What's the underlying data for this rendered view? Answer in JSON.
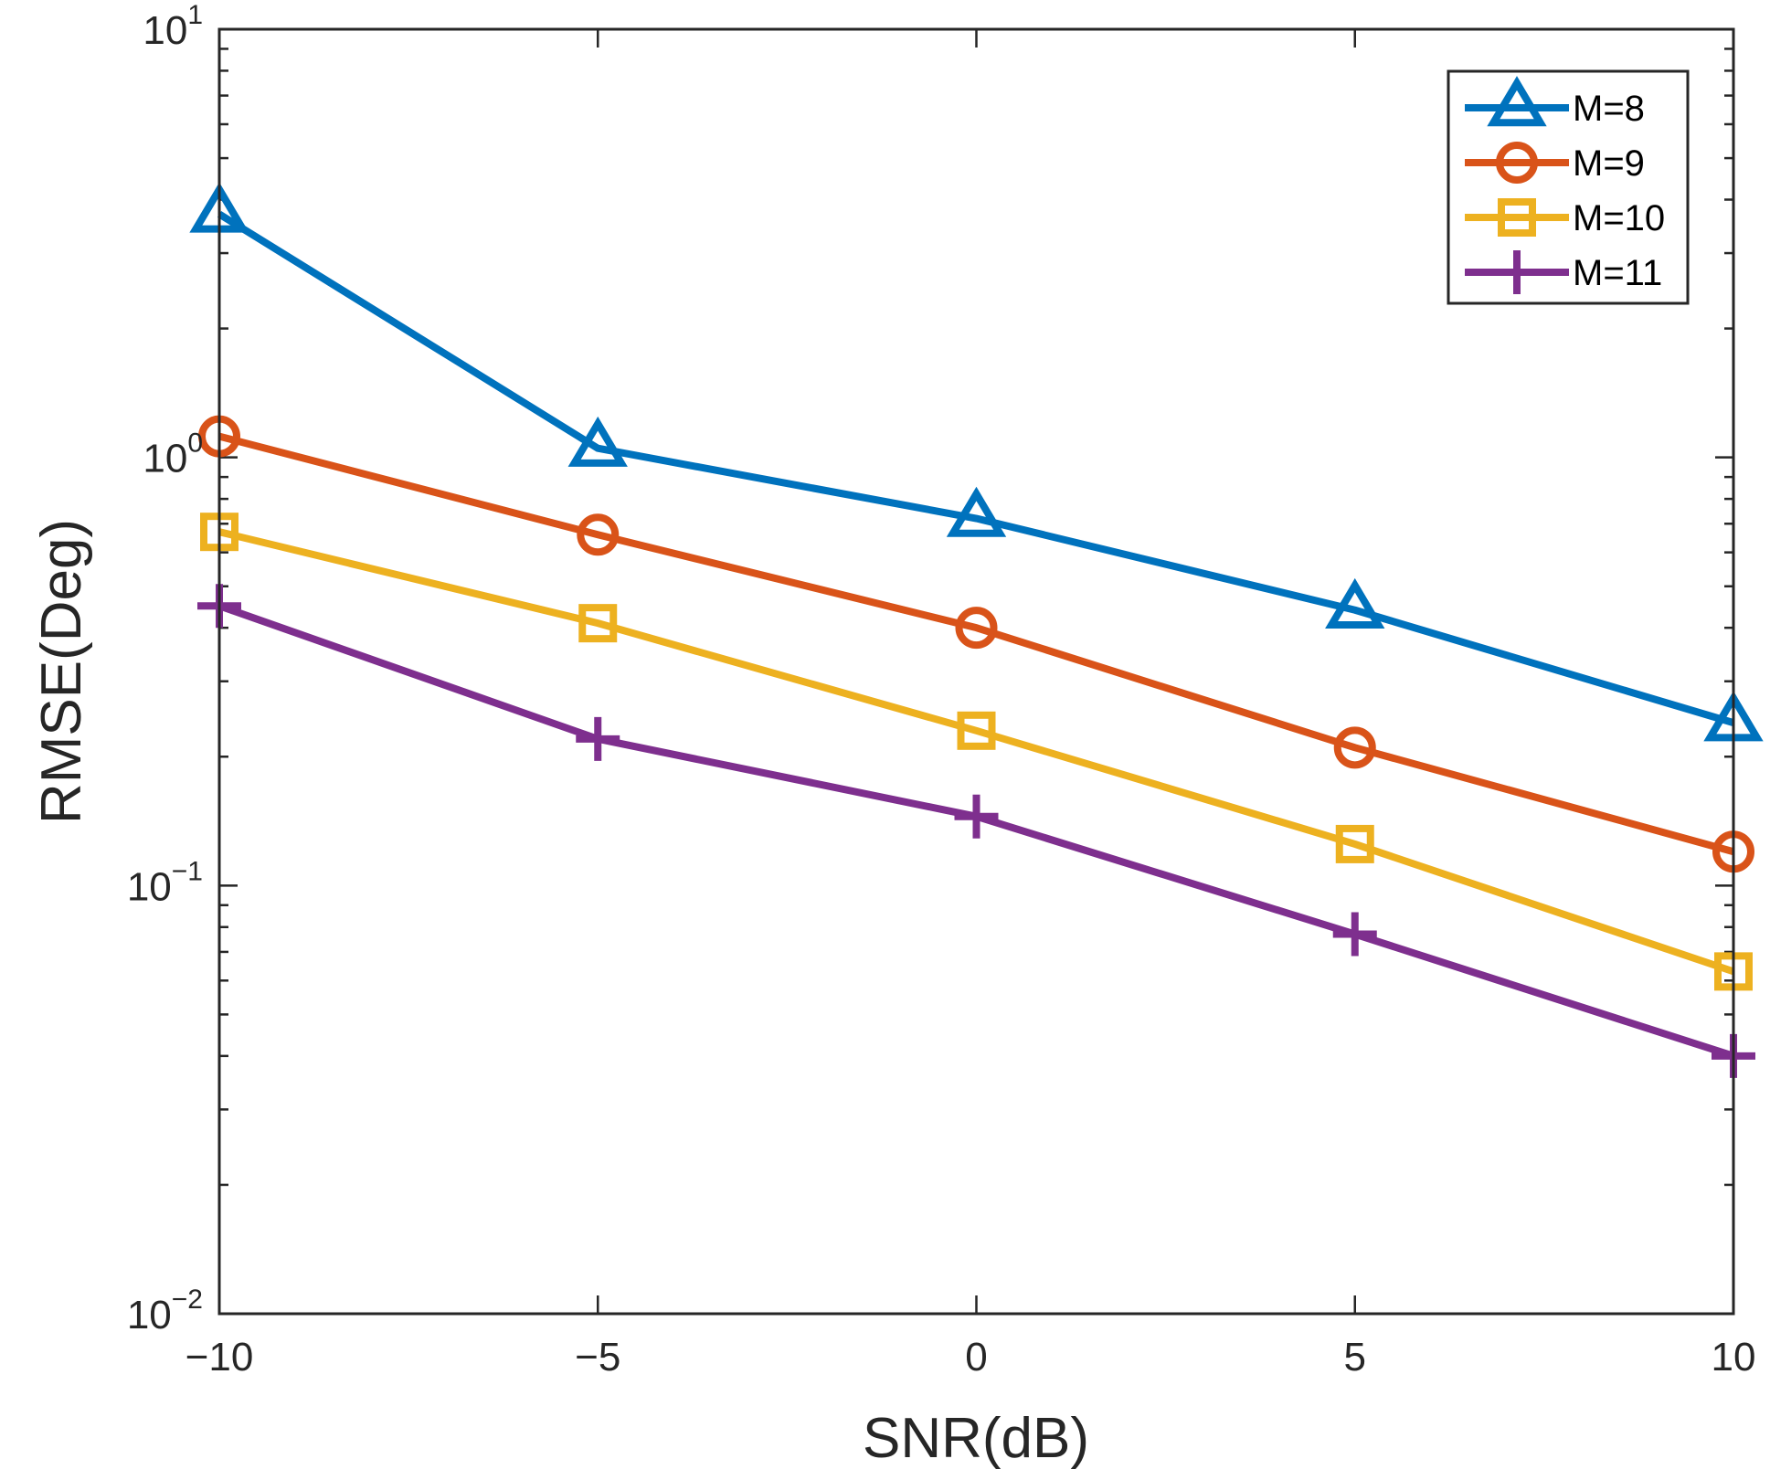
{
  "chart_data": {
    "type": "line",
    "title": "",
    "xlabel": "SNR(dB)",
    "ylabel": "RMSE(Deg)",
    "yscale": "log",
    "xlim": [
      -10,
      10
    ],
    "ylim": [
      0.01,
      10
    ],
    "x": [
      -10,
      -5,
      0,
      5,
      10
    ],
    "x_tick_labels": [
      "−10",
      "−5",
      "0",
      "5",
      "10"
    ],
    "y_ticks": [
      {
        "value": 10,
        "base": "10",
        "exp": "1"
      },
      {
        "value": 1,
        "base": "10",
        "exp": "0"
      },
      {
        "value": 0.1,
        "base": "10",
        "exp": "−1"
      },
      {
        "value": 0.01,
        "base": "10",
        "exp": "−2"
      }
    ],
    "legend_position": "top-right",
    "grid": false,
    "series": [
      {
        "name": "M=8",
        "marker": "triangle",
        "color": "#0072BD",
        "values": [
          3.7,
          1.05,
          0.72,
          0.44,
          0.24
        ]
      },
      {
        "name": "M=9",
        "marker": "circle",
        "color": "#D95319",
        "values": [
          1.12,
          0.66,
          0.4,
          0.21,
          0.12
        ]
      },
      {
        "name": "M=10",
        "marker": "square",
        "color": "#EDB120",
        "values": [
          0.67,
          0.41,
          0.23,
          0.125,
          0.063
        ]
      },
      {
        "name": "M=11",
        "marker": "plus",
        "color": "#7E2F8E",
        "values": [
          0.45,
          0.22,
          0.145,
          0.077,
          0.04
        ]
      }
    ]
  }
}
